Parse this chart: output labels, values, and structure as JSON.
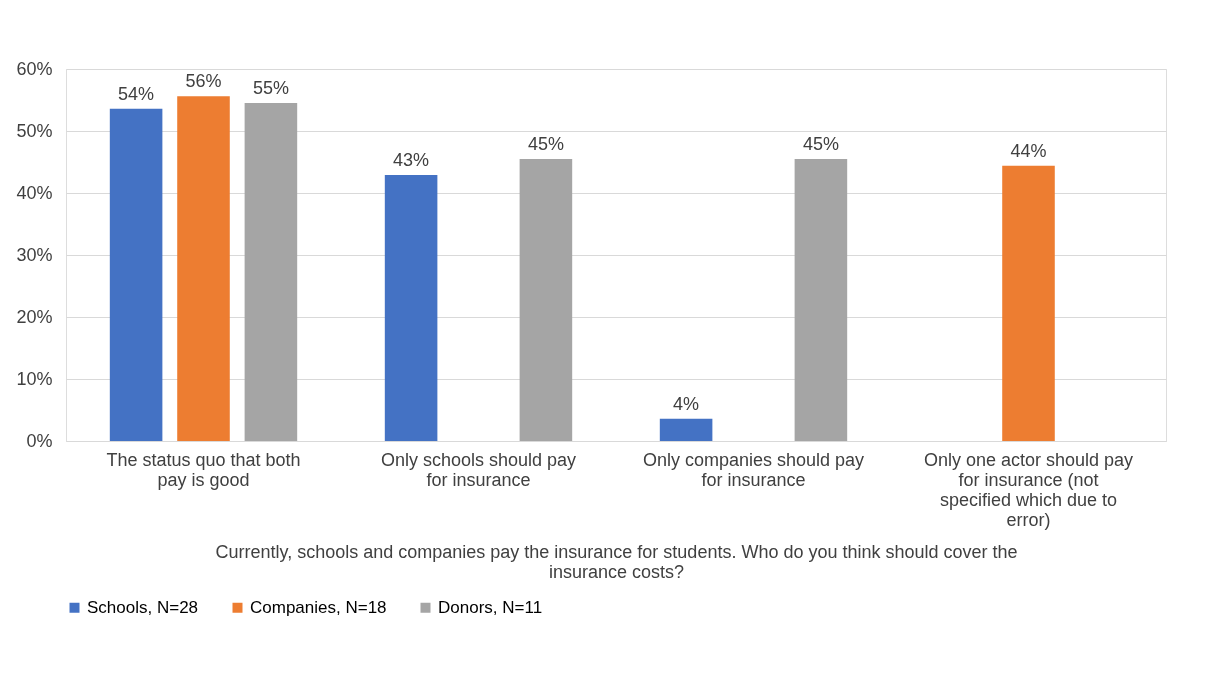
{
  "chart_data": {
    "type": "bar",
    "categories": [
      "The status quo that both pay is good",
      "Only schools should pay for insurance",
      "Only companies should pay for insurance",
      "Only one actor should pay for insurance (not specified which due to error)"
    ],
    "xlabel": "Currently, schools and companies pay the insurance for students. Who do you think should cover the insurance costs?",
    "series": [
      {
        "name": "Schools, N=28",
        "color": "#4472c4",
        "values": [
          53.6,
          42.9,
          3.6,
          null
        ],
        "value_labels": [
          "54%",
          "43%",
          "4%",
          null
        ]
      },
      {
        "name": "Companies, N=18",
        "color": "#ed7d31",
        "values": [
          55.6,
          null,
          null,
          44.4
        ],
        "value_labels": [
          "56%",
          null,
          null,
          "44%"
        ]
      },
      {
        "name": "Donors, N=11",
        "color": "#a5a5a5",
        "values": [
          54.5,
          45.5,
          45.5,
          null
        ],
        "value_labels": [
          "55%",
          "45%",
          "45%",
          null
        ]
      }
    ],
    "ylim": [
      0,
      60
    ],
    "yticks": [
      {
        "value": 0,
        "label": "0%"
      },
      {
        "value": 10,
        "label": "10%"
      },
      {
        "value": 20,
        "label": "20%"
      },
      {
        "value": 30,
        "label": "30%"
      },
      {
        "value": 40,
        "label": "40%"
      },
      {
        "value": 50,
        "label": "50%"
      },
      {
        "value": 60,
        "label": "60%"
      }
    ],
    "grid": "y",
    "legend": "bottom"
  }
}
